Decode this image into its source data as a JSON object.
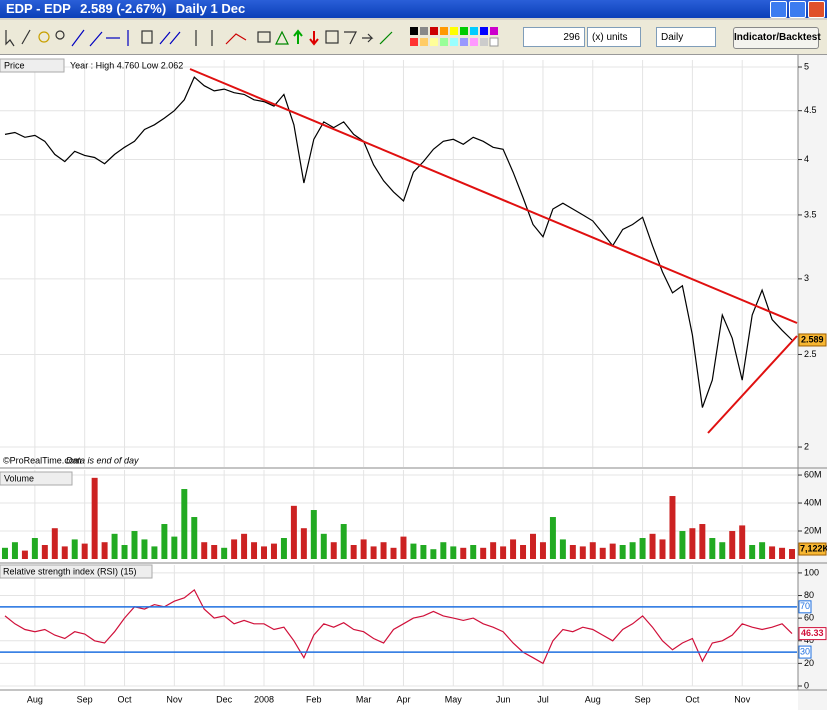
{
  "window": {
    "title": "EDP - EDP",
    "quote": "2.589 (-2.67%)",
    "period": "Daily  1 Dec"
  },
  "toolbar": {
    "units_value": "296",
    "units_label": "(x) units",
    "timeframe": "Daily",
    "button": "Indicator/Backtest"
  },
  "chart_data": [
    {
      "type": "line",
      "title": "Price",
      "annotation": "Year : High 4.760 Low 2.062",
      "source": "©ProRealTime.com",
      "note": "Data is end of day",
      "color": "#000000",
      "log": true,
      "grid": true,
      "ylim": [
        1.906,
        5.085
      ],
      "yticks": [
        5,
        4.5,
        4,
        3.5,
        3,
        2.5,
        2
      ],
      "values": [
        4.25,
        4.27,
        4.22,
        4.24,
        4.18,
        4.05,
        3.98,
        4.08,
        4.04,
        4.02,
        3.96,
        4.05,
        4.12,
        4.18,
        4.3,
        4.35,
        4.42,
        4.5,
        4.62,
        4.88,
        4.78,
        4.72,
        4.74,
        4.7,
        4.68,
        4.62,
        4.6,
        4.55,
        4.68,
        4.35,
        3.78,
        4.2,
        4.38,
        4.32,
        4.38,
        4.25,
        4.18,
        3.95,
        3.8,
        3.7,
        3.62,
        3.88,
        3.98,
        4.1,
        4.18,
        4.2,
        4.15,
        4.22,
        4.18,
        4.12,
        4.1,
        3.88,
        3.65,
        3.42,
        3.32,
        3.55,
        3.6,
        3.55,
        3.5,
        3.45,
        3.35,
        3.25,
        3.38,
        3.42,
        3.48,
        3.25,
        3.05,
        2.9,
        2.95,
        2.62,
        2.2,
        2.35,
        2.75,
        2.6,
        2.35,
        2.75,
        2.92,
        2.72,
        2.65,
        2.589
      ]
    },
    {
      "type": "bar",
      "title": "Volume",
      "up_color": "#22aa22",
      "down_color": "#cc2222",
      "grid": true,
      "ylim": [
        0,
        63.6
      ],
      "yticks": [
        {
          "value": 20,
          "label": "20M"
        },
        {
          "value": 40,
          "label": "40M"
        },
        {
          "value": 60,
          "label": "60M"
        }
      ],
      "last_label": "7,122K",
      "values": [
        8,
        12,
        6,
        15,
        10,
        22,
        9,
        14,
        11,
        58,
        12,
        18,
        10,
        20,
        14,
        9,
        25,
        16,
        50,
        30,
        12,
        10,
        8,
        14,
        18,
        12,
        9,
        11,
        15,
        38,
        22,
        35,
        18,
        12,
        25,
        10,
        14,
        9,
        12,
        8,
        16,
        11,
        10,
        7,
        12,
        9,
        8,
        10,
        8,
        12,
        9,
        14,
        10,
        18,
        12,
        30,
        14,
        10,
        9,
        12,
        8,
        11,
        10,
        12,
        15,
        18,
        14,
        45,
        20,
        22,
        25,
        15,
        12,
        20,
        24,
        10,
        12,
        9,
        8,
        7.122
      ]
    },
    {
      "type": "line",
      "title": "Relative strength index (RSI) (15)",
      "color": "#d0103a",
      "level_color": "#1e6fe0",
      "grid": true,
      "ylim": [
        0,
        107
      ],
      "yticks": [
        0,
        20,
        40,
        60,
        80,
        100
      ],
      "levels": [
        70,
        30
      ],
      "categories": [
        null,
        null,
        null,
        "Aug",
        null,
        null,
        null,
        null,
        "Sep",
        null,
        null,
        null,
        "Oct",
        null,
        null,
        null,
        null,
        "Nov",
        null,
        null,
        null,
        null,
        "Dec",
        null,
        null,
        null,
        "2008",
        null,
        null,
        null,
        null,
        "Feb",
        null,
        null,
        null,
        null,
        "Mar",
        null,
        null,
        null,
        "Apr",
        null,
        null,
        null,
        null,
        "May",
        null,
        null,
        null,
        null,
        "Jun",
        null,
        null,
        null,
        "Jul",
        null,
        null,
        null,
        null,
        "Aug",
        null,
        null,
        null,
        null,
        "Sep",
        null,
        null,
        null,
        null,
        "Oct",
        null,
        null,
        null,
        null,
        "Nov",
        null,
        null,
        null,
        null,
        null
      ],
      "values": [
        62,
        55,
        50,
        48,
        50,
        45,
        42,
        48,
        46,
        40,
        38,
        48,
        60,
        70,
        68,
        72,
        70,
        75,
        78,
        85,
        68,
        60,
        62,
        55,
        58,
        55,
        55,
        50,
        52,
        40,
        25,
        45,
        55,
        52,
        56,
        50,
        48,
        42,
        38,
        50,
        55,
        60,
        62,
        66,
        62,
        60,
        58,
        60,
        55,
        52,
        48,
        38,
        30,
        25,
        20,
        40,
        50,
        48,
        52,
        50,
        45,
        40,
        50,
        55,
        62,
        52,
        40,
        32,
        38,
        42,
        22,
        38,
        40,
        45,
        55,
        52,
        50,
        52,
        55,
        46.33
      ]
    }
  ]
}
